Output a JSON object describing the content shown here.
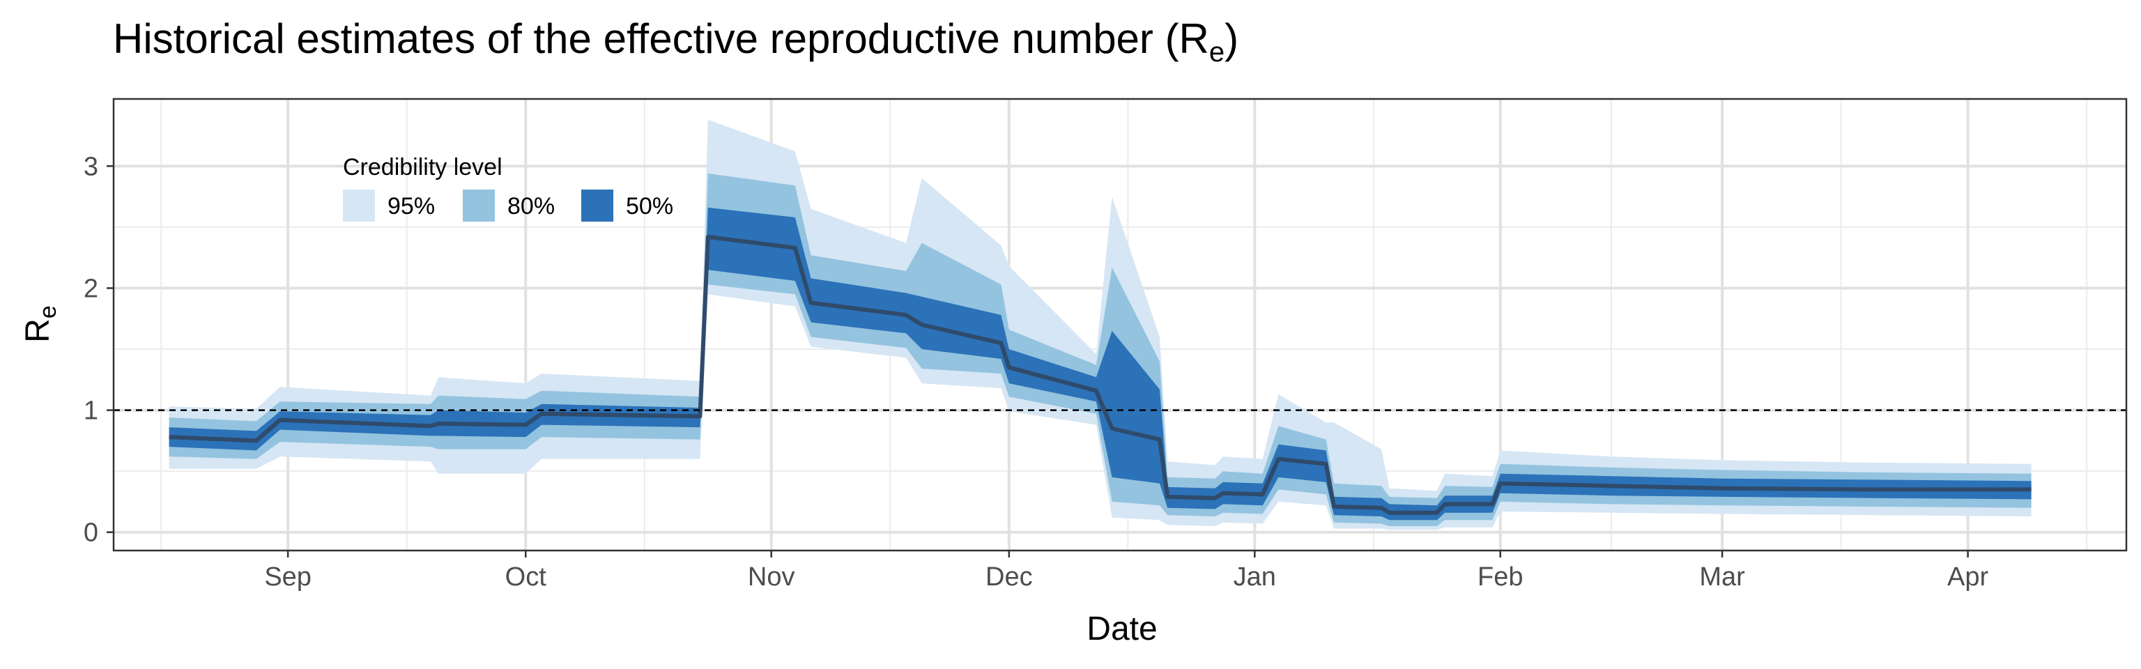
{
  "chart_data": {
    "type": "area",
    "title_main": "Historical estimates of the effective reproductive number (R",
    "title_sub": "e",
    "title_close": ")",
    "xlabel": "Date",
    "ylabel_main": "R",
    "ylabel_sub": "e",
    "xlim": [
      "2020-08-10",
      "2021-04-21"
    ],
    "ylim": [
      -0.15,
      3.55
    ],
    "x_ticks": [
      {
        "date": "2020-09-01",
        "label": "Sep"
      },
      {
        "date": "2020-10-01",
        "label": "Oct"
      },
      {
        "date": "2020-11-01",
        "label": "Nov"
      },
      {
        "date": "2020-12-01",
        "label": "Dec"
      },
      {
        "date": "2021-01-01",
        "label": "Jan"
      },
      {
        "date": "2021-02-01",
        "label": "Feb"
      },
      {
        "date": "2021-03-01",
        "label": "Mar"
      },
      {
        "date": "2021-04-01",
        "label": "Apr"
      }
    ],
    "x_minor_ticks": [
      "2020-08-16",
      "2020-09-16",
      "2020-10-16",
      "2020-11-16",
      "2020-12-16",
      "2021-01-16",
      "2021-02-15",
      "2021-03-16",
      "2021-04-16"
    ],
    "y_ticks": [
      0,
      1,
      2,
      3
    ],
    "y_minor_ticks": [
      0.5,
      1.5,
      2.5
    ],
    "reference_line": {
      "y": 1,
      "style": "dashed"
    },
    "grid": true,
    "legend": {
      "title": "Credibility level",
      "placement": "top-left",
      "items": [
        {
          "label": "95%",
          "color": "#d6e6f4"
        },
        {
          "label": "80%",
          "color": "#93c3df"
        },
        {
          "label": "50%",
          "color": "#2c72b8"
        }
      ]
    },
    "colors": {
      "median_line": "#2f4b6b",
      "ci95": "#d6e6f4",
      "ci80": "#93c3df",
      "ci50": "#2c72b8"
    },
    "series": [
      {
        "date": "2020-08-17",
        "median": 0.78,
        "lo50": 0.7,
        "hi50": 0.86,
        "lo80": 0.62,
        "hi80": 0.94,
        "lo95": 0.52,
        "hi95": 1.03
      },
      {
        "date": "2020-08-28",
        "median": 0.75,
        "lo50": 0.67,
        "hi50": 0.83,
        "lo80": 0.6,
        "hi80": 0.91,
        "lo95": 0.52,
        "hi95": 1.01
      },
      {
        "date": "2020-08-31",
        "median": 0.92,
        "lo50": 0.84,
        "hi50": 0.99,
        "lo80": 0.74,
        "hi80": 1.07,
        "lo95": 0.62,
        "hi95": 1.19
      },
      {
        "date": "2020-09-19",
        "median": 0.87,
        "lo50": 0.79,
        "hi50": 0.96,
        "lo80": 0.7,
        "hi80": 1.05,
        "lo95": 0.58,
        "hi95": 1.12
      },
      {
        "date": "2020-09-20",
        "median": 0.89,
        "lo50": 0.79,
        "hi50": 1.0,
        "lo80": 0.68,
        "hi80": 1.12,
        "lo95": 0.48,
        "hi95": 1.27
      },
      {
        "date": "2020-10-01",
        "median": 0.88,
        "lo50": 0.78,
        "hi50": 0.98,
        "lo80": 0.68,
        "hi80": 1.09,
        "lo95": 0.48,
        "hi95": 1.22
      },
      {
        "date": "2020-10-03",
        "median": 0.97,
        "lo50": 0.88,
        "hi50": 1.05,
        "lo80": 0.78,
        "hi80": 1.16,
        "lo95": 0.6,
        "hi95": 1.3
      },
      {
        "date": "2020-10-23",
        "median": 0.95,
        "lo50": 0.86,
        "hi50": 1.02,
        "lo80": 0.76,
        "hi80": 1.11,
        "lo95": 0.6,
        "hi95": 1.24
      },
      {
        "date": "2020-10-24",
        "median": 2.42,
        "lo50": 2.15,
        "hi50": 2.66,
        "lo80": 2.03,
        "hi80": 2.94,
        "lo95": 1.95,
        "hi95": 3.38
      },
      {
        "date": "2020-11-04",
        "median": 2.33,
        "lo50": 2.06,
        "hi50": 2.58,
        "lo80": 1.95,
        "hi80": 2.84,
        "lo95": 1.85,
        "hi95": 3.12
      },
      {
        "date": "2020-11-06",
        "median": 1.88,
        "lo50": 1.72,
        "hi50": 2.08,
        "lo80": 1.6,
        "hi80": 2.27,
        "lo95": 1.52,
        "hi95": 2.65
      },
      {
        "date": "2020-11-18",
        "median": 1.78,
        "lo50": 1.63,
        "hi50": 1.96,
        "lo80": 1.51,
        "hi80": 2.14,
        "lo95": 1.43,
        "hi95": 2.37
      },
      {
        "date": "2020-11-20",
        "median": 1.7,
        "lo50": 1.5,
        "hi50": 1.93,
        "lo80": 1.34,
        "hi80": 2.37,
        "lo95": 1.22,
        "hi95": 2.9
      },
      {
        "date": "2020-11-30",
        "median": 1.55,
        "lo50": 1.42,
        "hi50": 1.78,
        "lo80": 1.3,
        "hi80": 2.03,
        "lo95": 1.18,
        "hi95": 2.35
      },
      {
        "date": "2020-12-01",
        "median": 1.35,
        "lo50": 1.22,
        "hi50": 1.5,
        "lo80": 1.11,
        "hi80": 1.66,
        "lo95": 0.99,
        "hi95": 2.18
      },
      {
        "date": "2020-12-12",
        "median": 1.16,
        "lo50": 1.07,
        "hi50": 1.27,
        "lo80": 0.97,
        "hi80": 1.37,
        "lo95": 0.88,
        "hi95": 1.46
      },
      {
        "date": "2020-12-14",
        "median": 0.85,
        "lo50": 0.45,
        "hi50": 1.65,
        "lo80": 0.25,
        "hi80": 2.17,
        "lo95": 0.12,
        "hi95": 2.75
      },
      {
        "date": "2020-12-20",
        "median": 0.76,
        "lo50": 0.4,
        "hi50": 1.17,
        "lo80": 0.22,
        "hi80": 1.4,
        "lo95": 0.1,
        "hi95": 1.6
      },
      {
        "date": "2020-12-21",
        "median": 0.29,
        "lo50": 0.2,
        "hi50": 0.37,
        "lo80": 0.14,
        "hi80": 0.45,
        "lo95": 0.06,
        "hi95": 0.58
      },
      {
        "date": "2020-12-27",
        "median": 0.28,
        "lo50": 0.19,
        "hi50": 0.36,
        "lo80": 0.13,
        "hi80": 0.44,
        "lo95": 0.05,
        "hi95": 0.55
      },
      {
        "date": "2020-12-28",
        "median": 0.32,
        "lo50": 0.23,
        "hi50": 0.41,
        "lo80": 0.16,
        "hi80": 0.5,
        "lo95": 0.08,
        "hi95": 0.62
      },
      {
        "date": "2021-01-02",
        "median": 0.31,
        "lo50": 0.22,
        "hi50": 0.4,
        "lo80": 0.15,
        "hi80": 0.48,
        "lo95": 0.07,
        "hi95": 0.6
      },
      {
        "date": "2021-01-04",
        "median": 0.6,
        "lo50": 0.45,
        "hi50": 0.72,
        "lo80": 0.35,
        "hi80": 0.87,
        "lo95": 0.25,
        "hi95": 1.13
      },
      {
        "date": "2021-01-10",
        "median": 0.56,
        "lo50": 0.41,
        "hi50": 0.67,
        "lo80": 0.31,
        "hi80": 0.76,
        "lo95": 0.22,
        "hi95": 0.9
      },
      {
        "date": "2021-01-11",
        "median": 0.21,
        "lo50": 0.14,
        "hi50": 0.29,
        "lo80": 0.08,
        "hi80": 0.4,
        "lo95": 0.03,
        "hi95": 0.9
      },
      {
        "date": "2021-01-17",
        "median": 0.2,
        "lo50": 0.13,
        "hi50": 0.28,
        "lo80": 0.07,
        "hi80": 0.38,
        "lo95": 0.03,
        "hi95": 0.68
      },
      {
        "date": "2021-01-18",
        "median": 0.16,
        "lo50": 0.1,
        "hi50": 0.23,
        "lo80": 0.05,
        "hi80": 0.29,
        "lo95": 0.02,
        "hi95": 0.36
      },
      {
        "date": "2021-01-24",
        "median": 0.16,
        "lo50": 0.1,
        "hi50": 0.22,
        "lo80": 0.05,
        "hi80": 0.28,
        "lo95": 0.02,
        "hi95": 0.34
      },
      {
        "date": "2021-01-25",
        "median": 0.23,
        "lo50": 0.16,
        "hi50": 0.3,
        "lo80": 0.1,
        "hi80": 0.38,
        "lo95": 0.04,
        "hi95": 0.48
      },
      {
        "date": "2021-01-31",
        "median": 0.23,
        "lo50": 0.16,
        "hi50": 0.3,
        "lo80": 0.1,
        "hi80": 0.37,
        "lo95": 0.04,
        "hi95": 0.46
      },
      {
        "date": "2021-02-01",
        "median": 0.4,
        "lo50": 0.32,
        "hi50": 0.48,
        "lo80": 0.25,
        "hi80": 0.56,
        "lo95": 0.17,
        "hi95": 0.67
      },
      {
        "date": "2021-02-15",
        "median": 0.38,
        "lo50": 0.3,
        "hi50": 0.46,
        "lo80": 0.23,
        "hi80": 0.53,
        "lo95": 0.16,
        "hi95": 0.62
      },
      {
        "date": "2021-03-01",
        "median": 0.36,
        "lo50": 0.29,
        "hi50": 0.44,
        "lo80": 0.22,
        "hi80": 0.51,
        "lo95": 0.15,
        "hi95": 0.59
      },
      {
        "date": "2021-03-20",
        "median": 0.35,
        "lo50": 0.28,
        "hi50": 0.43,
        "lo80": 0.21,
        "hi80": 0.49,
        "lo95": 0.14,
        "hi95": 0.57
      },
      {
        "date": "2021-04-09",
        "median": 0.35,
        "lo50": 0.27,
        "hi50": 0.42,
        "lo80": 0.2,
        "hi80": 0.48,
        "lo95": 0.13,
        "hi95": 0.56
      }
    ]
  }
}
